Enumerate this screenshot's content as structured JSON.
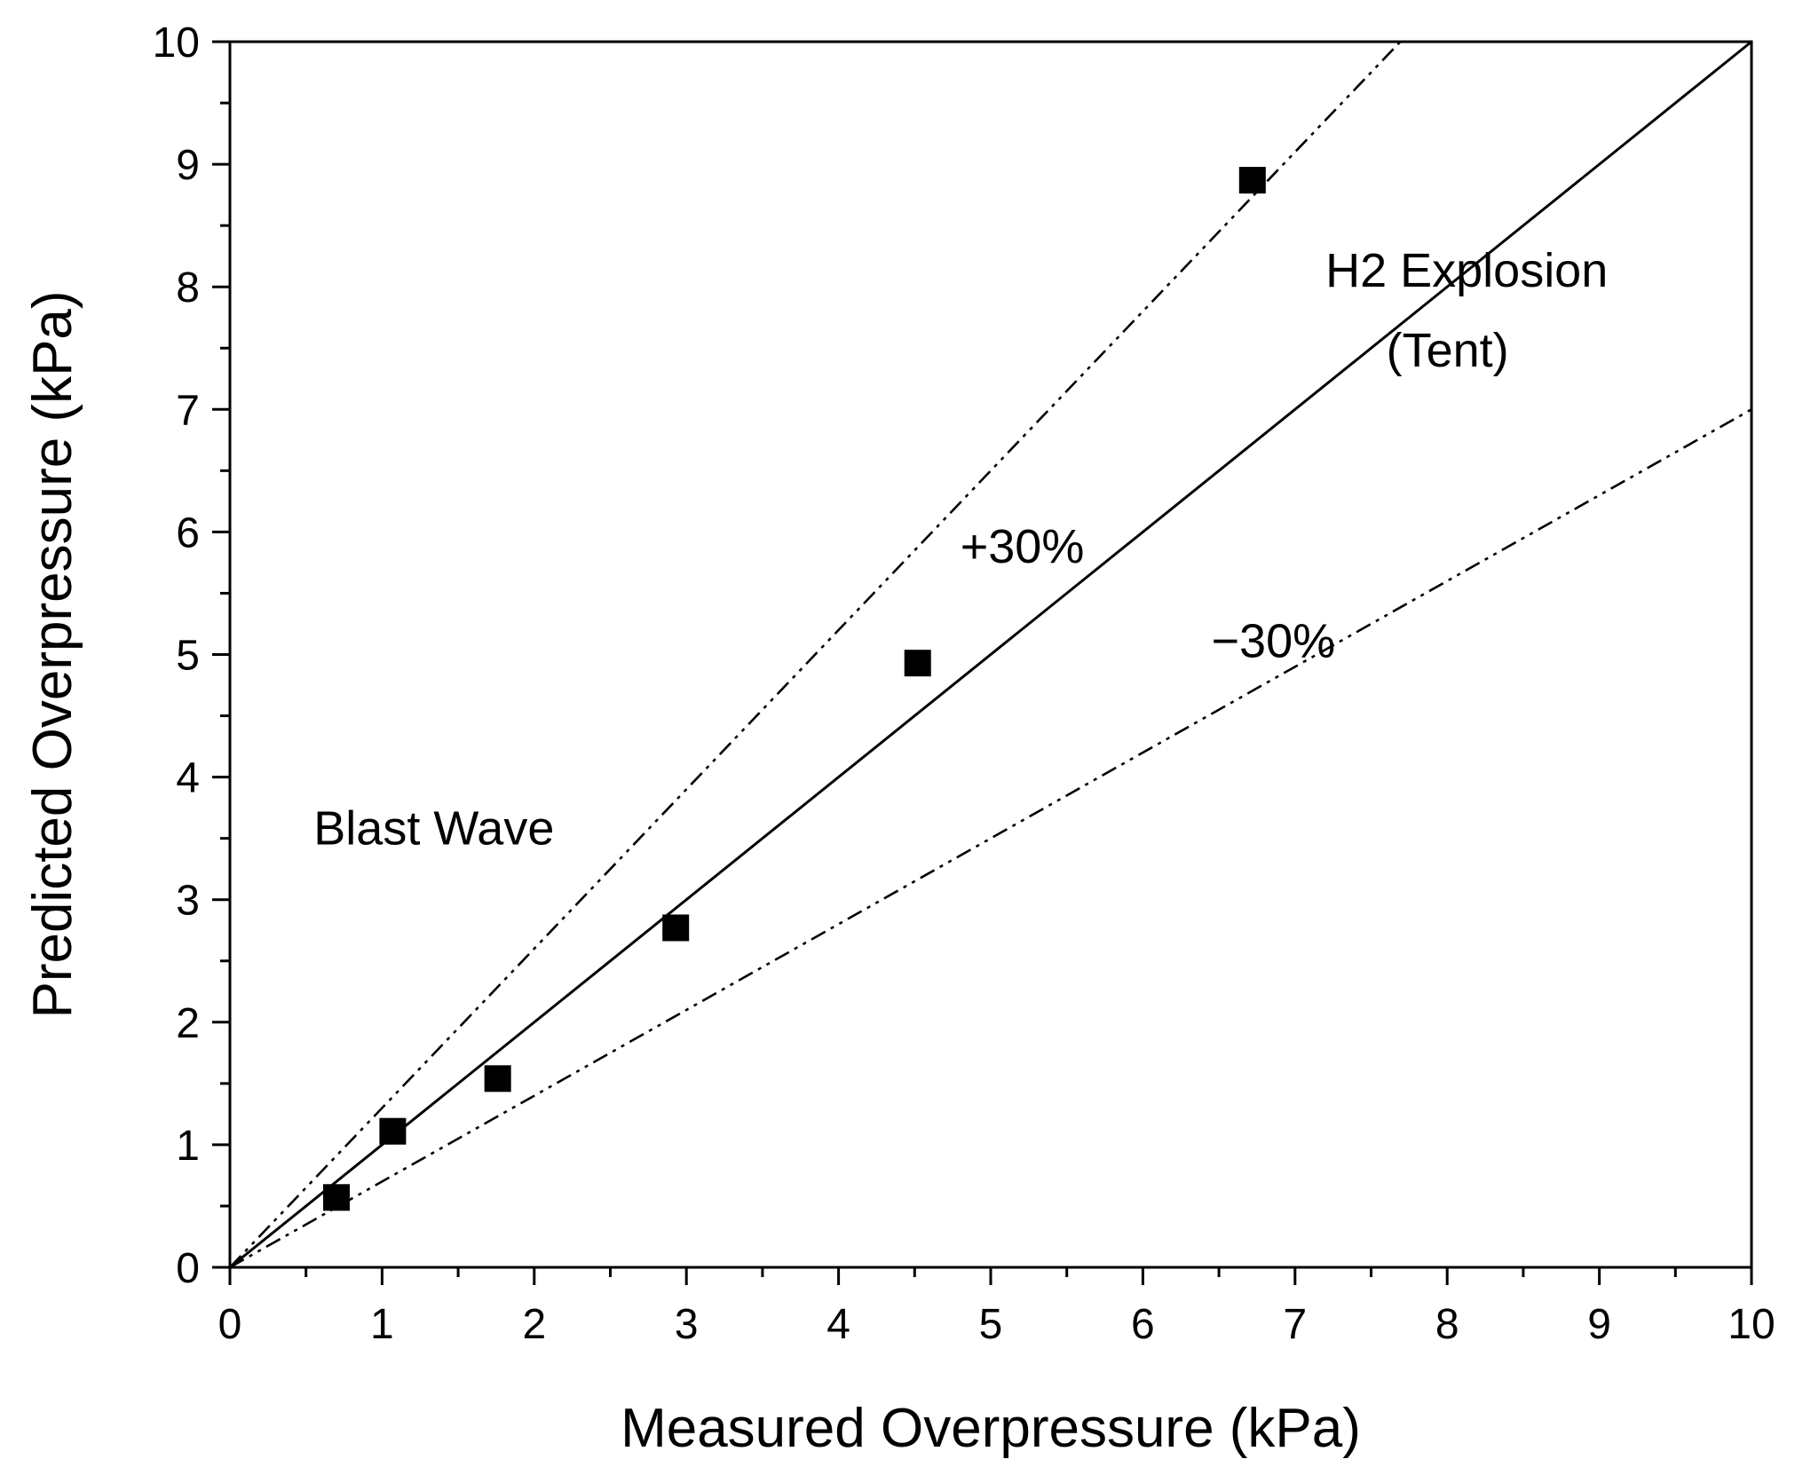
{
  "chart_data": {
    "type": "scatter",
    "xlabel": "Measured Overpressure (kPa)",
    "ylabel": "Predicted Overpressure (kPa)",
    "xlim": [
      0,
      10
    ],
    "ylim": [
      0,
      10
    ],
    "x_ticks": [
      0,
      1,
      2,
      3,
      4,
      5,
      6,
      7,
      8,
      9,
      10
    ],
    "y_ticks": [
      0,
      1,
      2,
      3,
      4,
      5,
      6,
      7,
      8,
      9,
      10
    ],
    "x_tick_labels": [
      "0",
      "1",
      "2",
      "3",
      "4",
      "5",
      "6",
      "7",
      "8",
      "9",
      "10"
    ],
    "y_tick_labels": [
      "0",
      "1",
      "2",
      "3",
      "4",
      "5",
      "6",
      "7",
      "8",
      "9",
      "10"
    ],
    "minor_step": 0.5,
    "grid": false,
    "series": [
      {
        "name": "Blast Wave",
        "marker": "square",
        "color": "#000000",
        "points": [
          {
            "x": 0.7,
            "y": 0.57
          },
          {
            "x": 1.07,
            "y": 1.11
          },
          {
            "x": 1.76,
            "y": 1.54
          },
          {
            "x": 2.93,
            "y": 2.77
          },
          {
            "x": 4.52,
            "y": 4.93
          },
          {
            "x": 6.72,
            "y": 8.87
          }
        ]
      }
    ],
    "reference_lines": [
      {
        "name": "parity",
        "slope": 1.0,
        "style": "solid"
      },
      {
        "name": "+30%",
        "slope": 1.3,
        "style": "dash-dot-dot"
      },
      {
        "name": "-30%",
        "slope": 0.7,
        "style": "dash-dot-dot"
      }
    ],
    "annotations": [
      {
        "text": "Blast Wave",
        "x": 0.55,
        "y": 3.45
      },
      {
        "text": "H2 Explosion",
        "x": 7.2,
        "y": 8.0
      },
      {
        "text": "(Tent)",
        "x": 7.6,
        "y": 7.35
      },
      {
        "text": "+30%",
        "x": 4.8,
        "y": 5.75
      },
      {
        "text": "−30%",
        "x": 6.45,
        "y": 4.98
      }
    ]
  }
}
